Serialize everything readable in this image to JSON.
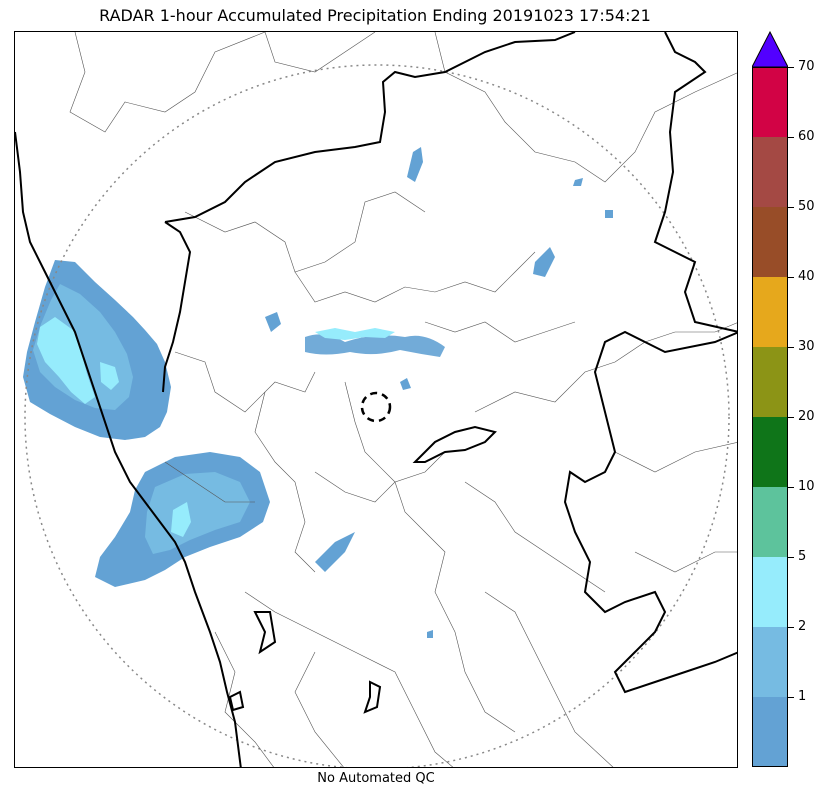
{
  "title": "RADAR 1-hour Accumulated Precipitation Ending 20191023 17:54:21",
  "footer": "No Automated QC",
  "colors": {
    "bin_lt1": "#63a2d4",
    "bin_1_2": "#76bbe2",
    "bin_2_5": "#96ecfc",
    "bin_5_10": "#5dc39c",
    "bin_10_20": "#0f7519",
    "bin_20_30": "#8c9416",
    "bin_30_40": "#e6a81c",
    "bin_40_50": "#984d28",
    "bin_50_60": "#a44944",
    "bin_60_70": "#d20345",
    "over_70": "#5200ff",
    "coastline": "#000000",
    "district_lines": "#555555",
    "range_ring": "#888888"
  },
  "colorbar": {
    "colors": [
      "#63a2d4",
      "#76bbe2",
      "#96ecfc",
      "#5dc39c",
      "#0f7519",
      "#8c9416",
      "#e6a81c",
      "#984d28",
      "#a44944",
      "#d20345"
    ],
    "extend_color": "#5200ff",
    "tick_labels": [
      "1",
      "2",
      "5",
      "10",
      "20",
      "30",
      "40",
      "50",
      "60",
      "70"
    ],
    "units_note": ""
  },
  "radar_site_marker": "dashed-circle"
}
